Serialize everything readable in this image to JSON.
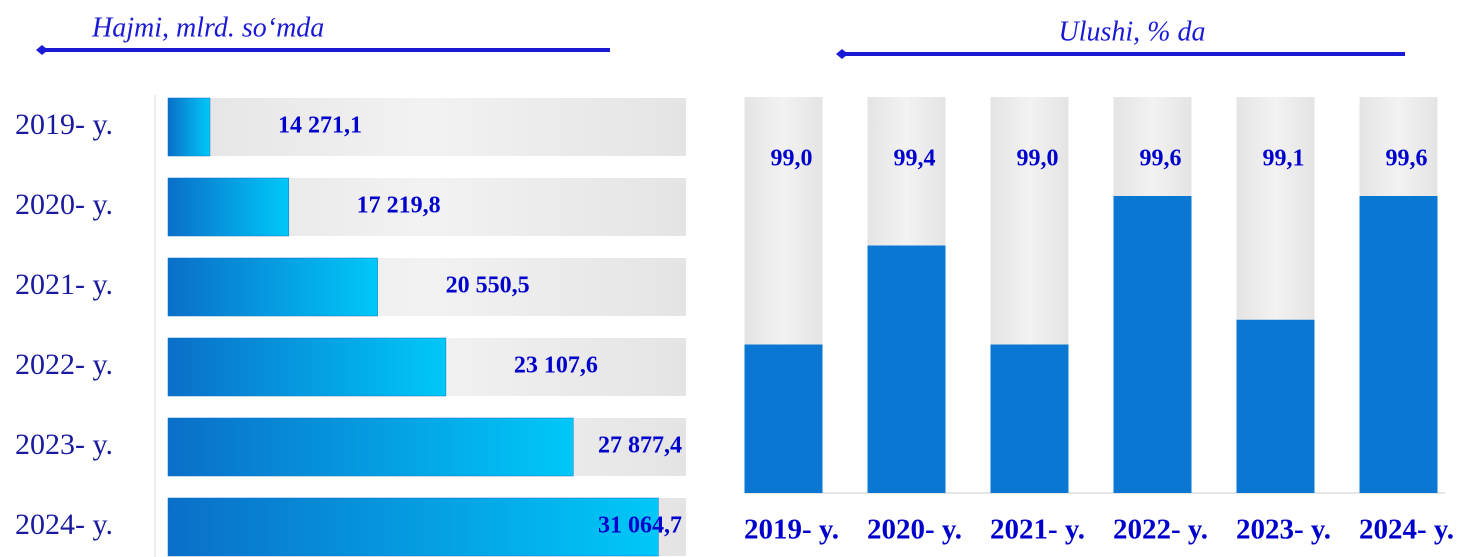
{
  "chart_data": [
    {
      "type": "hbar",
      "subtitle": "Hajmi, mlrd. so‘mda",
      "categories": [
        "2019- y.",
        "2020- y.",
        "2021- y.",
        "2022- y.",
        "2023- y.",
        "2024- y."
      ],
      "values": [
        14271.1,
        17219.8,
        20550.5,
        23107.6,
        27877.4,
        31064.7
      ],
      "value_labels": [
        "14 271,1",
        "17 219,8",
        "20 550,5",
        "23 107,6",
        "27 877,4",
        "31 064,7"
      ],
      "color": "#0a6fc8",
      "xlim": [
        12700,
        32100
      ]
    },
    {
      "type": "bar",
      "subtitle": "Ulushi, % da",
      "categories": [
        "2019- y.",
        "2020- y.",
        "2021- y.",
        "2022- y.",
        "2023- y.",
        "2024- y."
      ],
      "values": [
        99.0,
        99.4,
        99.0,
        99.6,
        99.1,
        99.6
      ],
      "value_labels": [
        "99,0",
        "99,4",
        "99,0",
        "99,6",
        "99,1",
        "99,6"
      ],
      "color": "#0a78d2",
      "ylim": [
        98.4,
        100
      ]
    }
  ]
}
